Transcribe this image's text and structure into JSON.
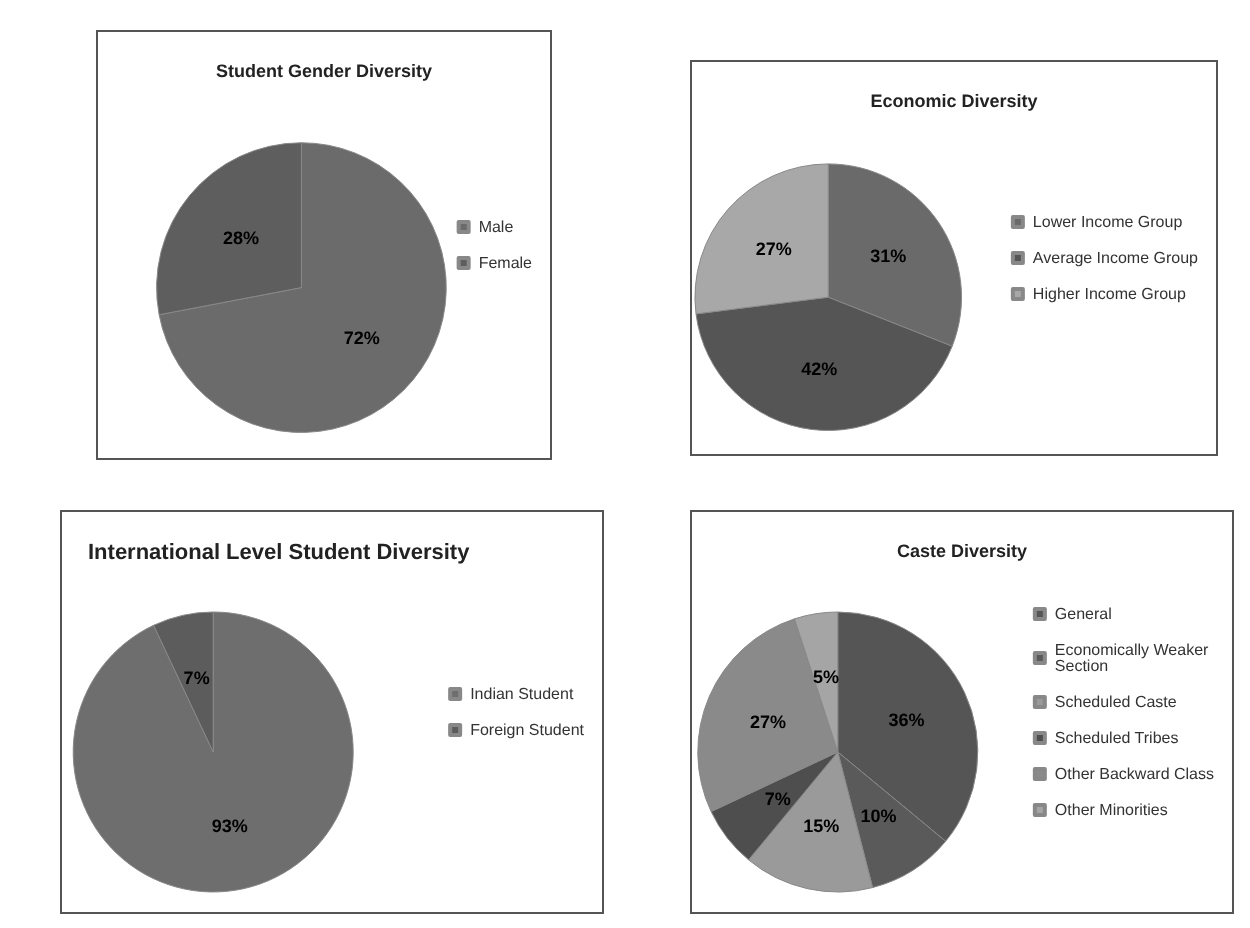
{
  "chart_data": [
    {
      "type": "pie",
      "title": "Student Gender Diversity",
      "categories": [
        "Male",
        "Female"
      ],
      "values": [
        72,
        28
      ],
      "colors": [
        "#6b6b6b",
        "#5e5e5e"
      ],
      "value_labels": [
        "72%",
        "28%"
      ],
      "legend": "right"
    },
    {
      "type": "pie",
      "title": "Economic Diversity",
      "categories": [
        "Lower Income Group",
        "Average Income Group",
        "Higher Income Group"
      ],
      "values": [
        31,
        42,
        27
      ],
      "colors": [
        "#6a6a6a",
        "#555555",
        "#a8a8a8"
      ],
      "value_labels": [
        "31%",
        "42%",
        "27%"
      ],
      "legend": "right"
    },
    {
      "type": "pie",
      "title": "International Level Student Diversity",
      "categories": [
        "Indian Student",
        "Foreign Student"
      ],
      "values": [
        93,
        7
      ],
      "colors": [
        "#6e6e6e",
        "#5c5c5c"
      ],
      "value_labels": [
        "93%",
        "7%"
      ],
      "legend": "right"
    },
    {
      "type": "pie",
      "title": "Caste Diversity",
      "categories": [
        "General",
        "Economically Weaker Section",
        "Scheduled Caste",
        "Scheduled Tribes",
        "Other Backward Class",
        "Other Minorities"
      ],
      "values": [
        36,
        10,
        15,
        7,
        27,
        5
      ],
      "colors": [
        "#555555",
        "#5a5a5a",
        "#9a9a9a",
        "#4e4e4e",
        "#8a8a8a",
        "#a5a5a5"
      ],
      "value_labels": [
        "36%",
        "10%",
        "15%",
        "7%",
        "27%",
        "5%"
      ],
      "legend": "right"
    }
  ]
}
